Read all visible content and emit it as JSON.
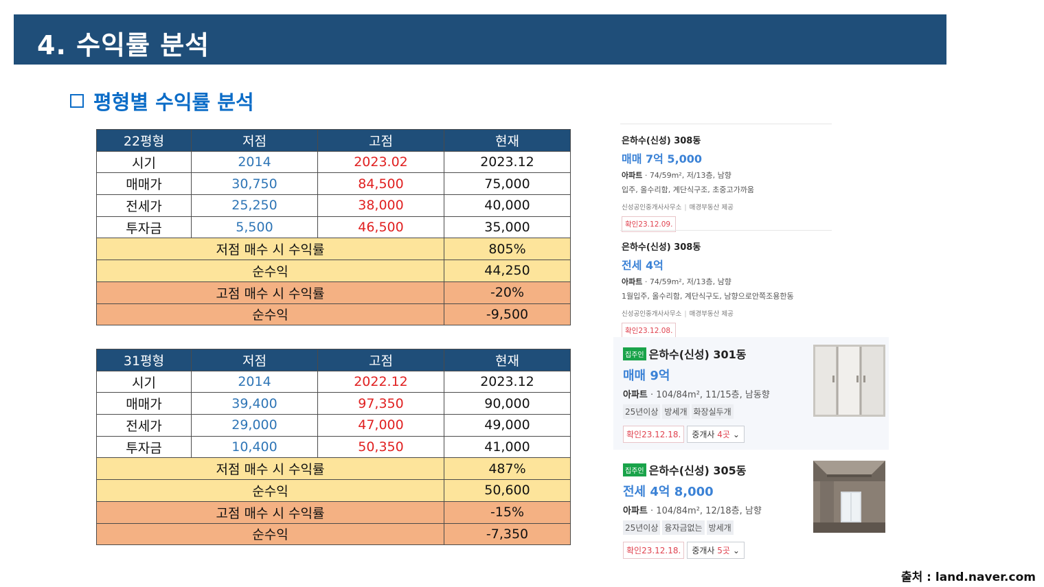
{
  "header": {
    "title": "4. 수익률 분석"
  },
  "section": {
    "subtitle": "평형별 수익률 분석"
  },
  "tables": [
    {
      "headers": [
        "22평형",
        "저점",
        "고점",
        "현재"
      ],
      "rows": [
        {
          "label": "시기",
          "low": "2014",
          "high": "2023.02",
          "now": "2023.12"
        },
        {
          "label": "매매가",
          "low": "30,750",
          "high": "84,500",
          "now": "75,000"
        },
        {
          "label": "전세가",
          "low": "25,250",
          "high": "38,000",
          "now": "40,000"
        },
        {
          "label": "투자금",
          "low": "5,500",
          "high": "46,500",
          "now": "35,000"
        }
      ],
      "summary": [
        {
          "label": "저점 매수 시 수익률",
          "value": "805%"
        },
        {
          "label": "순수익",
          "value": "44,250"
        },
        {
          "label": "고점 매수 시 수익률",
          "value": "-20%"
        },
        {
          "label": "순수익",
          "value": "-9,500"
        }
      ]
    },
    {
      "headers": [
        "31평형",
        "저점",
        "고점",
        "현재"
      ],
      "rows": [
        {
          "label": "시기",
          "low": "2014",
          "high": "2022.12",
          "now": "2023.12"
        },
        {
          "label": "매매가",
          "low": "39,400",
          "high": "97,350",
          "now": "90,000"
        },
        {
          "label": "전세가",
          "low": "29,000",
          "high": "47,000",
          "now": "49,000"
        },
        {
          "label": "투자금",
          "low": "10,400",
          "high": "50,350",
          "now": "41,000"
        }
      ],
      "summary": [
        {
          "label": "저점 매수 시 수익률",
          "value": "487%"
        },
        {
          "label": "순수익",
          "value": "50,600"
        },
        {
          "label": "고점 매수 시 수익률",
          "value": "-15%"
        },
        {
          "label": "순수익",
          "value": "-7,350"
        }
      ]
    }
  ],
  "listings": [
    {
      "building": "은하수(신성) 308동",
      "price": "매매 7억 5,000",
      "type": "아파트",
      "spec": "74/59m², 저/13층, 남향",
      "desc": "입주, 올수리함, 계단식구조, 초중고가까움",
      "agent": "신성공인중개사사무소",
      "provider": "매경부동산 제공",
      "confirm": "확인23.12.09."
    },
    {
      "building": "은하수(신성) 308동",
      "price": "전세 4억",
      "type": "아파트",
      "spec": "74/59m², 저/13층, 남향",
      "desc": "1월입주, 올수리함, 계단식구도, 남향으로안쪽조용한동",
      "agent": "신성공인중개사사무소",
      "provider": "매경부동산 제공",
      "confirm": "확인23.12.08."
    }
  ],
  "cards": [
    {
      "owner_badge": "집주인",
      "building": "은하수(신성) 301동",
      "price": "매매 9억",
      "type": "아파트",
      "spec": "104/84m², 11/15층, 남동향",
      "tags": [
        "25년이상",
        "방세개",
        "화장실두개"
      ],
      "confirm": "확인23.12.18.",
      "agents_label": "중개사",
      "agents_count": "4곳"
    },
    {
      "owner_badge": "집주인",
      "building": "은하수(신성) 305동",
      "price": "전세 4억 8,000",
      "type": "아파트",
      "spec": "104/84m², 12/18층, 남향",
      "tags": [
        "25년이상",
        "융자금없는",
        "방세개"
      ],
      "confirm": "확인23.12.18.",
      "agents_label": "중개사",
      "agents_count": "5곳"
    }
  ],
  "footer": {
    "source": "출처 : land.naver.com"
  }
}
